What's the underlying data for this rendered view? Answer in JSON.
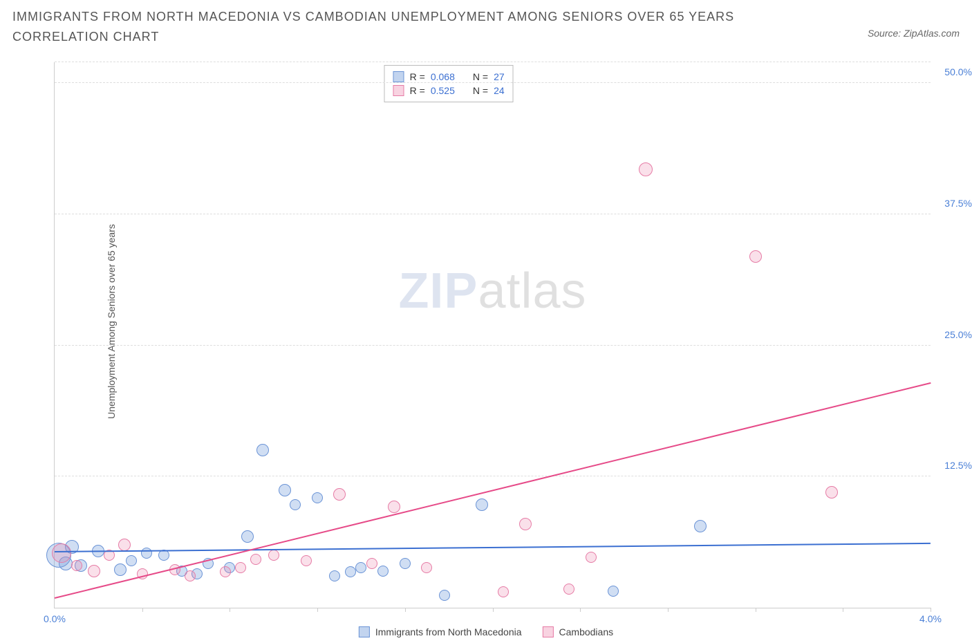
{
  "title": "IMMIGRANTS FROM NORTH MACEDONIA VS CAMBODIAN UNEMPLOYMENT AMONG SENIORS OVER 65 YEARS CORRELATION CHART",
  "source": "Source: ZipAtlas.com",
  "watermark_zip": "ZIP",
  "watermark_atlas": "atlas",
  "y_axis_label": "Unemployment Among Seniors over 65 years",
  "chart": {
    "type": "scatter",
    "xlim": [
      0.0,
      4.0
    ],
    "ylim": [
      0.0,
      52.0
    ],
    "xtick_labels": [
      "0.0%",
      "4.0%"
    ],
    "xtick_positions_pct": [
      0,
      100
    ],
    "vtick_positions_pct": [
      10,
      20,
      30,
      40,
      50,
      60,
      70,
      80,
      90,
      100
    ],
    "ytick_labels": [
      "12.5%",
      "25.0%",
      "37.5%",
      "50.0%"
    ],
    "ytick_positions_pct": [
      24.04,
      48.08,
      72.12,
      96.15
    ],
    "grid_color": "#dddddd",
    "axis_color": "#cccccc",
    "background_color": "#ffffff",
    "series": [
      {
        "name": "Immigrants from North Macedonia",
        "class": "blue",
        "color_fill": "rgba(120,160,220,0.35)",
        "color_stroke": "#6a93d6",
        "R": "0.068",
        "N": "27",
        "trend": {
          "x1": 0.0,
          "y1": 5.4,
          "x2": 4.0,
          "y2": 6.2
        },
        "points": [
          {
            "x": 0.02,
            "y": 5.0,
            "r": 18
          },
          {
            "x": 0.05,
            "y": 4.2,
            "r": 10
          },
          {
            "x": 0.08,
            "y": 5.8,
            "r": 10
          },
          {
            "x": 0.12,
            "y": 4.0,
            "r": 9
          },
          {
            "x": 0.2,
            "y": 5.4,
            "r": 9
          },
          {
            "x": 0.3,
            "y": 3.6,
            "r": 9
          },
          {
            "x": 0.35,
            "y": 4.5,
            "r": 8
          },
          {
            "x": 0.5,
            "y": 5.0,
            "r": 8
          },
          {
            "x": 0.58,
            "y": 3.5,
            "r": 8
          },
          {
            "x": 0.7,
            "y": 4.2,
            "r": 8
          },
          {
            "x": 0.8,
            "y": 3.8,
            "r": 8
          },
          {
            "x": 0.88,
            "y": 6.8,
            "r": 9
          },
          {
            "x": 0.95,
            "y": 15.0,
            "r": 9
          },
          {
            "x": 1.05,
            "y": 11.2,
            "r": 9
          },
          {
            "x": 1.1,
            "y": 9.8,
            "r": 8
          },
          {
            "x": 1.2,
            "y": 10.5,
            "r": 8
          },
          {
            "x": 1.28,
            "y": 3.0,
            "r": 8
          },
          {
            "x": 1.35,
            "y": 3.4,
            "r": 8
          },
          {
            "x": 1.4,
            "y": 3.8,
            "r": 8
          },
          {
            "x": 1.5,
            "y": 3.5,
            "r": 8
          },
          {
            "x": 1.6,
            "y": 4.2,
            "r": 8
          },
          {
            "x": 1.78,
            "y": 1.2,
            "r": 8
          },
          {
            "x": 1.95,
            "y": 9.8,
            "r": 9
          },
          {
            "x": 2.55,
            "y": 1.6,
            "r": 8
          },
          {
            "x": 2.95,
            "y": 7.8,
            "r": 9
          },
          {
            "x": 0.42,
            "y": 5.2,
            "r": 8
          },
          {
            "x": 0.65,
            "y": 3.2,
            "r": 8
          }
        ]
      },
      {
        "name": "Cambodians",
        "class": "pink",
        "color_fill": "rgba(235,130,170,0.25)",
        "color_stroke": "#e67ba5",
        "R": "0.525",
        "N": "24",
        "trend": {
          "x1": 0.0,
          "y1": 1.0,
          "x2": 4.0,
          "y2": 21.5
        },
        "points": [
          {
            "x": 0.03,
            "y": 5.2,
            "r": 14
          },
          {
            "x": 0.1,
            "y": 4.0,
            "r": 8
          },
          {
            "x": 0.18,
            "y": 3.5,
            "r": 9
          },
          {
            "x": 0.25,
            "y": 5.0,
            "r": 8
          },
          {
            "x": 0.32,
            "y": 6.0,
            "r": 9
          },
          {
            "x": 0.4,
            "y": 3.2,
            "r": 8
          },
          {
            "x": 0.55,
            "y": 3.6,
            "r": 8
          },
          {
            "x": 0.62,
            "y": 3.0,
            "r": 8
          },
          {
            "x": 0.78,
            "y": 3.4,
            "r": 8
          },
          {
            "x": 0.85,
            "y": 3.8,
            "r": 8
          },
          {
            "x": 0.92,
            "y": 4.6,
            "r": 8
          },
          {
            "x": 1.0,
            "y": 5.0,
            "r": 8
          },
          {
            "x": 1.15,
            "y": 4.5,
            "r": 8
          },
          {
            "x": 1.3,
            "y": 10.8,
            "r": 9
          },
          {
            "x": 1.55,
            "y": 9.6,
            "r": 9
          },
          {
            "x": 1.7,
            "y": 3.8,
            "r": 8
          },
          {
            "x": 2.05,
            "y": 1.5,
            "r": 8
          },
          {
            "x": 2.15,
            "y": 8.0,
            "r": 9
          },
          {
            "x": 2.35,
            "y": 1.8,
            "r": 8
          },
          {
            "x": 2.45,
            "y": 4.8,
            "r": 8
          },
          {
            "x": 2.7,
            "y": 41.8,
            "r": 10
          },
          {
            "x": 3.2,
            "y": 33.5,
            "r": 9
          },
          {
            "x": 3.55,
            "y": 11.0,
            "r": 9
          },
          {
            "x": 1.45,
            "y": 4.2,
            "r": 8
          }
        ]
      }
    ]
  },
  "legend_top": {
    "rows": [
      {
        "swatch": "blue",
        "r_label": "R =",
        "r_val": "0.068",
        "n_label": "N =",
        "n_val": "27"
      },
      {
        "swatch": "pink",
        "r_label": "R =",
        "r_val": "0.525",
        "n_label": "N =",
        "n_val": "24"
      }
    ]
  },
  "legend_bottom": {
    "items": [
      {
        "swatch": "blue",
        "label": "Immigrants from North Macedonia"
      },
      {
        "swatch": "pink",
        "label": "Cambodians"
      }
    ]
  }
}
